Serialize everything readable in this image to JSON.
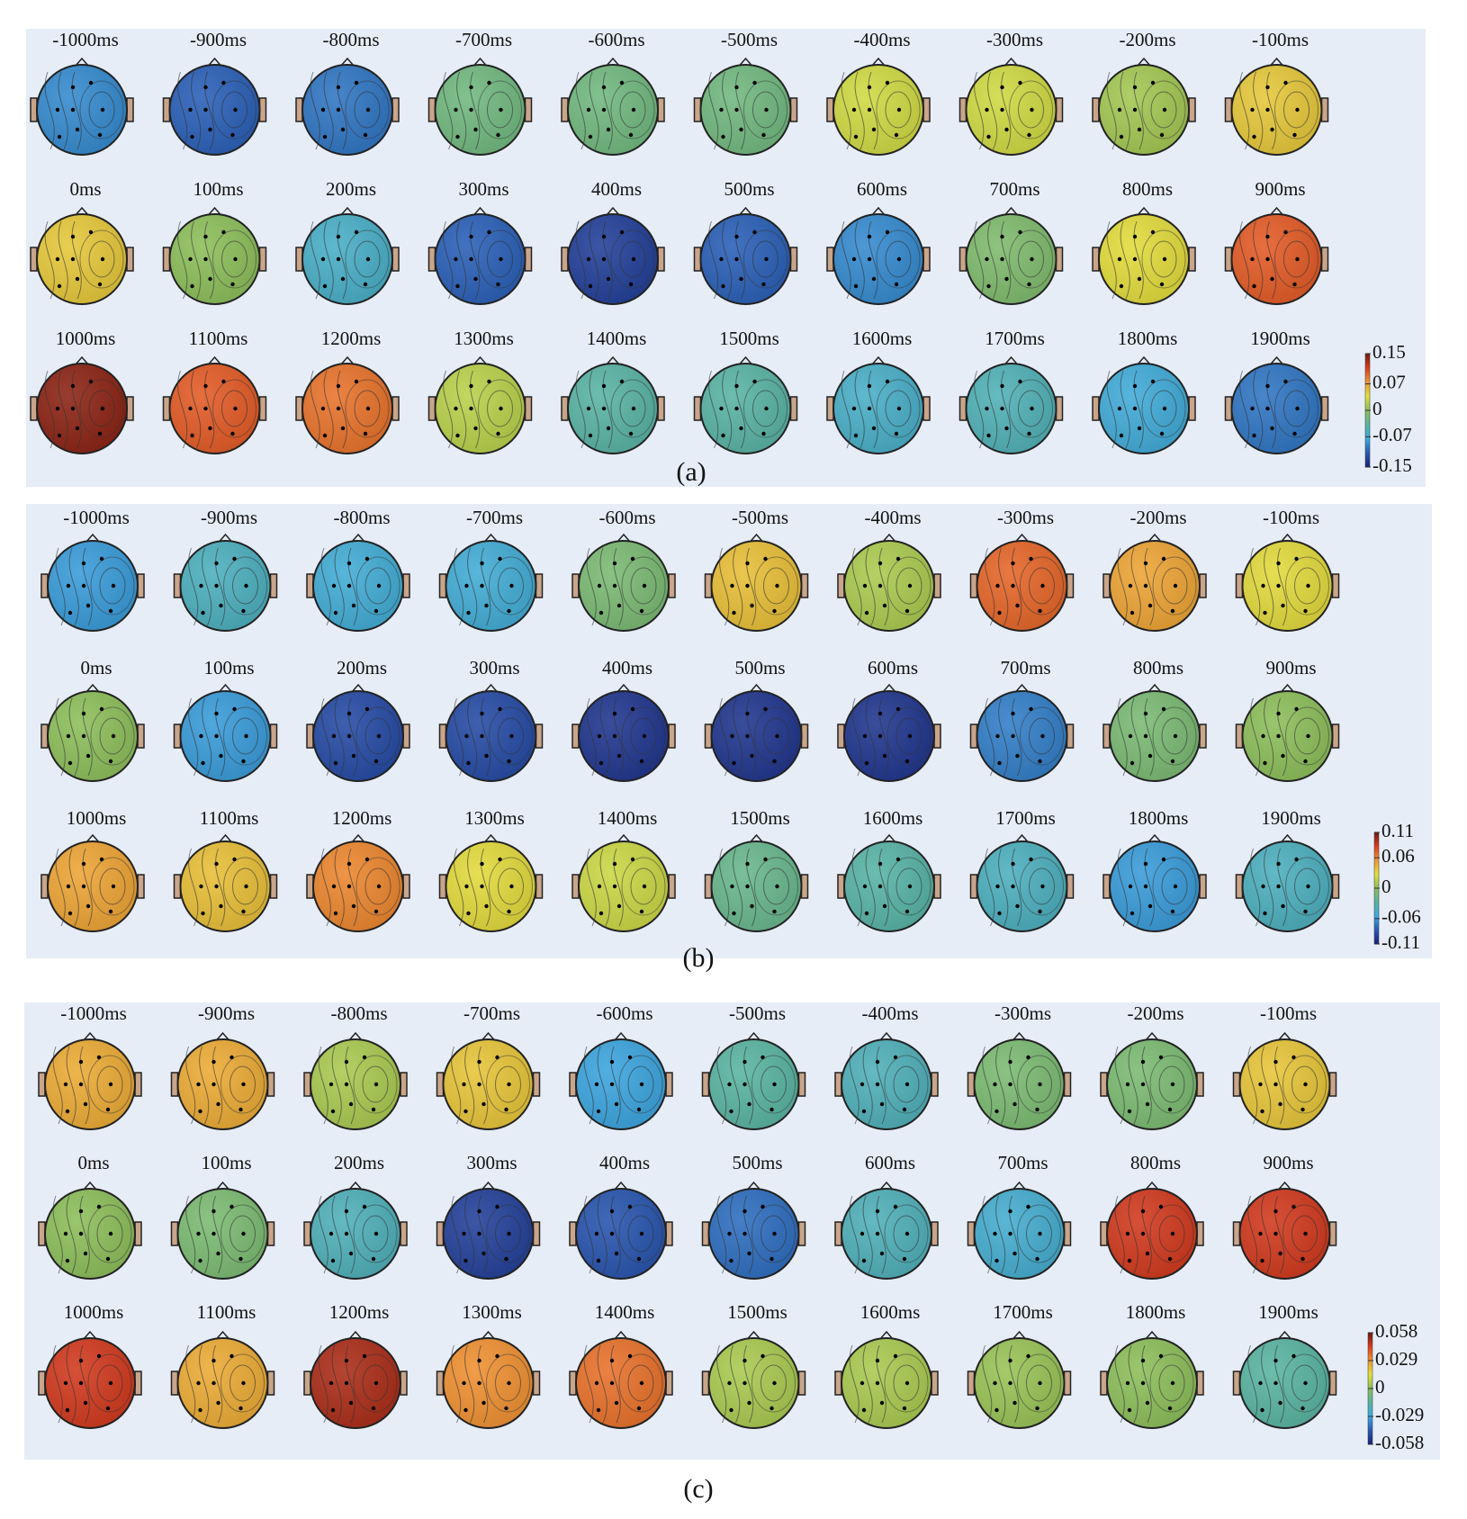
{
  "chart_data": [
    {
      "type": "topomap",
      "caption": "(a)",
      "categories": [
        "-1000ms",
        "-900ms",
        "-800ms",
        "-700ms",
        "-600ms",
        "-500ms",
        "-400ms",
        "-300ms",
        "-200ms",
        "-100ms",
        "0ms",
        "100ms",
        "200ms",
        "300ms",
        "400ms",
        "500ms",
        "600ms",
        "700ms",
        "800ms",
        "900ms",
        "1000ms",
        "1100ms",
        "1200ms",
        "1300ms",
        "1400ms",
        "1500ms",
        "1600ms",
        "1700ms",
        "1800ms",
        "1900ms"
      ],
      "values": [
        -0.09,
        -0.11,
        -0.1,
        -0.02,
        -0.02,
        -0.02,
        0.03,
        0.03,
        0.01,
        0.05,
        0.05,
        0.0,
        -0.06,
        -0.11,
        -0.13,
        -0.11,
        -0.09,
        -0.01,
        0.04,
        0.1,
        0.14,
        0.1,
        0.09,
        0.02,
        -0.04,
        -0.04,
        -0.06,
        -0.05,
        -0.07,
        -0.1
      ],
      "clim": [
        -0.15,
        0.15
      ],
      "cticks": [
        0.15,
        0.07,
        0,
        -0.07,
        -0.15
      ]
    },
    {
      "type": "topomap",
      "caption": "(b)",
      "categories": [
        "-1000ms",
        "-900ms",
        "-800ms",
        "-700ms",
        "-600ms",
        "-500ms",
        "-400ms",
        "-300ms",
        "-200ms",
        "-100ms",
        "0ms",
        "100ms",
        "200ms",
        "300ms",
        "400ms",
        "500ms",
        "600ms",
        "700ms",
        "800ms",
        "900ms",
        "1000ms",
        "1100ms",
        "1200ms",
        "1300ms",
        "1400ms",
        "1500ms",
        "1600ms",
        "1700ms",
        "1800ms",
        "1900ms"
      ],
      "values": [
        -0.06,
        -0.04,
        -0.05,
        -0.05,
        -0.01,
        0.04,
        0.01,
        0.07,
        0.05,
        0.03,
        0.0,
        -0.06,
        -0.09,
        -0.09,
        -0.1,
        -0.1,
        -0.1,
        -0.07,
        -0.01,
        0.0,
        0.05,
        0.04,
        0.06,
        0.03,
        0.02,
        -0.02,
        -0.03,
        -0.04,
        -0.06,
        -0.04
      ],
      "clim": [
        -0.11,
        0.11
      ],
      "cticks": [
        0.11,
        0.06,
        0,
        -0.06,
        -0.11
      ]
    },
    {
      "type": "topomap",
      "caption": "(c)",
      "categories": [
        "-1000ms",
        "-900ms",
        "-800ms",
        "-700ms",
        "-600ms",
        "-500ms",
        "-400ms",
        "-300ms",
        "-200ms",
        "-100ms",
        "0ms",
        "100ms",
        "200ms",
        "300ms",
        "400ms",
        "500ms",
        "600ms",
        "700ms",
        "800ms",
        "900ms",
        "1000ms",
        "1100ms",
        "1200ms",
        "1300ms",
        "1400ms",
        "1500ms",
        "1600ms",
        "1700ms",
        "1800ms",
        "1900ms"
      ],
      "values": [
        0.025,
        0.025,
        0.005,
        0.02,
        -0.03,
        -0.015,
        -0.02,
        -0.005,
        -0.005,
        0.02,
        0.0,
        -0.005,
        -0.02,
        -0.05,
        -0.045,
        -0.04,
        -0.02,
        -0.025,
        0.045,
        0.045,
        0.045,
        0.025,
        0.05,
        0.03,
        0.035,
        0.005,
        0.005,
        0.002,
        0.0,
        -0.015
      ],
      "clim": [
        -0.058,
        0.058
      ],
      "cticks": [
        0.058,
        0.029,
        0,
        -0.029,
        -0.058
      ]
    }
  ]
}
